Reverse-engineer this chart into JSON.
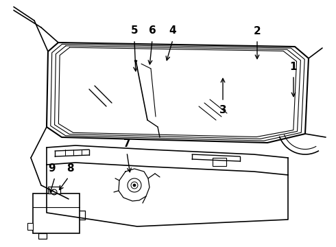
{
  "bg_color": "#ffffff",
  "line_color": "#000000",
  "label_color": "#000000",
  "fig_width": 4.9,
  "fig_height": 3.6,
  "dpi": 100,
  "molding_offsets": [
    0.008,
    0.016,
    0.024,
    0.032
  ],
  "arrow_props": {
    "arrowstyle": "->",
    "lw": 1.0,
    "mutation_scale": 8
  }
}
